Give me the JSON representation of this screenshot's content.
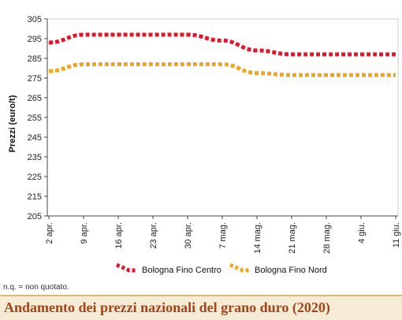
{
  "chart_data": {
    "type": "line",
    "title": "Andamento dei prezzi nazionali del grano duro (2020)",
    "ylabel": "Prezzi (euro/t)",
    "xlabel": "",
    "ylim": [
      205,
      305
    ],
    "y_ticks": [
      205,
      215,
      225,
      235,
      245,
      255,
      265,
      275,
      285,
      295,
      305
    ],
    "categories": [
      "2 apr.",
      "9 apr.",
      "16 apr.",
      "23 apr.",
      "30 apr.",
      "7 mag.",
      "14 mag.",
      "21 mag.",
      "28 mag.",
      "4 giu.",
      "11 giu."
    ],
    "series": [
      {
        "name": "Bologna Fino Centro",
        "color": "#e0162b",
        "values": [
          293,
          297,
          297,
          297,
          297,
          294,
          289,
          287,
          287,
          287,
          287
        ]
      },
      {
        "name": "Bologna Fino Nord",
        "color": "#f2a51a",
        "values": [
          278.5,
          282,
          282,
          282,
          282,
          282,
          277.5,
          276.5,
          276.5,
          276.5,
          276.5
        ]
      }
    ],
    "grid": false,
    "legend_position": "bottom"
  },
  "note": "n.q. = non quotato."
}
